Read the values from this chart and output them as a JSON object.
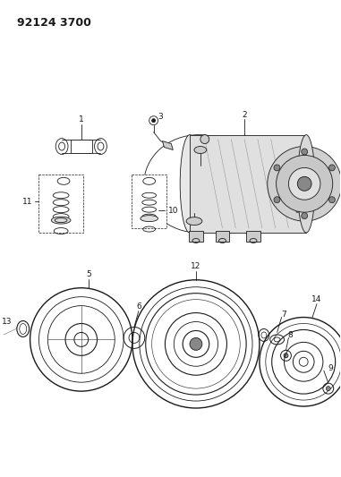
{
  "title": "92124 3700",
  "bg_color": "#ffffff",
  "line_color": "#1a1a1a",
  "title_fontsize": 9,
  "fig_width": 3.81,
  "fig_height": 5.33,
  "dpi": 100
}
